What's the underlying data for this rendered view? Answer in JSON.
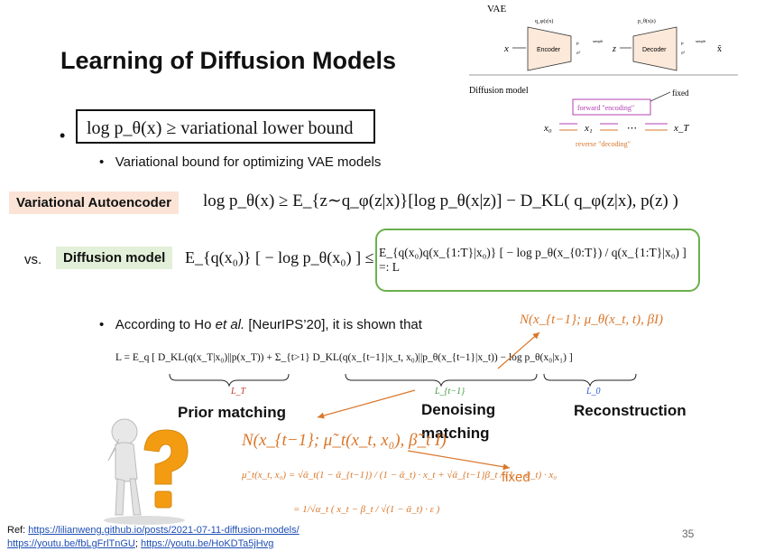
{
  "slide": {
    "title": "Learning of Diffusion Models",
    "page_number": "35"
  },
  "bullets": {
    "main": "log p_θ(x) ≥  variational lower bound",
    "sub1": "Variational bound for optimizing VAE models",
    "sub2_prefix": "According to Ho ",
    "sub2_italic": "et al.",
    "sub2_suffix": " [NeurIPS’20], it is shown that"
  },
  "tags": {
    "vae": "Variational Autoencoder",
    "vs": "vs.",
    "diffusion": "Diffusion model"
  },
  "equations": {
    "vae_bound": "log p_θ(x) ≥ E_{z∼q_φ(z|x)}[log p_θ(x|z)] − D_KL( q_φ(z|x), p(z) )",
    "diffusion_left": "E_{q(x₀)} [ − log p_θ(x₀) ] ≤",
    "diffusion_right": "E_{q(x₀)q(x_{1:T}|x₀)} [ − log  p_θ(x_{0:T}) / q(x_{1:T}|x₀) ] =: L",
    "elbo_L": "L = E_q [ D_KL(q(x_T|x₀)||p(x_T)) + Σ_{t>1} D_KL(q(x_{t−1}|x_t, x₀)||p_θ(x_{t−1}|x_t)) − log p_θ(x₀|x₁) ]",
    "L_T": "L_T",
    "L_t1": "L_{t−1}",
    "L_0": "L_0",
    "normal_p": "N(x_{t−1}; μ_θ(x_t, t), βI)",
    "normal_q": "N(x_{t−1}; μ̃_t(x_t, x₀), β̃_t I)",
    "fixed": "fixed",
    "mu_tilde_1": "μ̃_t(x_t, x₀) = √ᾱ_t(1 − ᾱ_{t−1}) / (1 − ᾱ_t) · x_t + √ᾱ_{t−1}β_t / (1 − ᾱ_t) · x₀",
    "mu_tilde_2": "= 1/√α_t ( x_t − β_t / √(1 − ᾱ_t) · ε )"
  },
  "term_labels": {
    "prior": "Prior matching",
    "denoising_1": "Denoising",
    "denoising_2": "matching",
    "reconstruction": "Reconstruction"
  },
  "diagram": {
    "vae_label": "VAE",
    "q_label": "q_φ(z|x)",
    "p_label": "p_θ(x|z)",
    "x": "x",
    "encoder": "Encoder",
    "z": "z",
    "decoder": "Decoder",
    "x_hat": "x̃",
    "sample": "sample",
    "mu": "μ",
    "sigma": "σ²",
    "diffusion_label": "Diffusion model",
    "forward": "forward \"encoding\"",
    "fixed": "fixed",
    "x0": "x₀",
    "x1": "x₁",
    "dots": "⋯",
    "xT": "x_T",
    "reverse": "reverse \"decoding\""
  },
  "references": {
    "prefix": "Ref: ",
    "link1": "https://lilianweng.github.io/posts/2021-07-11-diffusion-models/",
    "link2": "https://youtu.be/fbLgFrlTnGU",
    "sep": "; ",
    "link3": "https://youtu.be/HoKDTa5jHvg"
  },
  "colors": {
    "orange": "#d9772b",
    "green_border": "#6ab04c",
    "tag_vae_bg": "#fbe3d6",
    "tag_diff_bg": "#e2f0d9",
    "purple": "#b340b3",
    "green_label": "#3c9a3c",
    "red_label": "#c0392b",
    "blue_label": "#2a5bd7"
  }
}
